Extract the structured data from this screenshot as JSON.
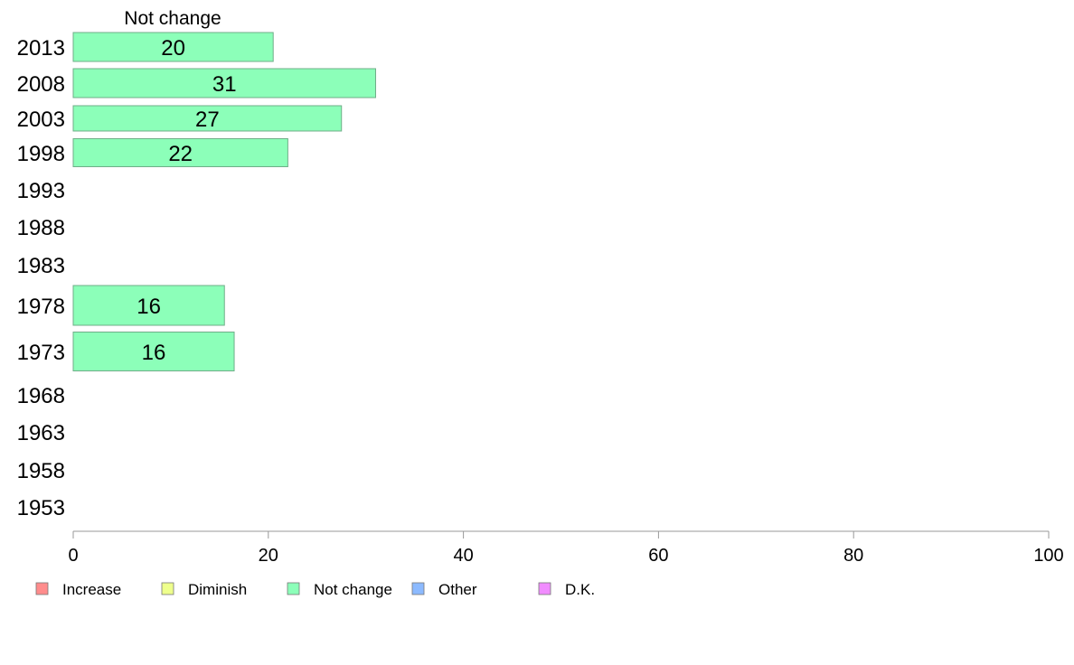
{
  "chart_data": {
    "type": "bar",
    "orientation": "horizontal",
    "header": "Not change",
    "categories": [
      "2013",
      "2008",
      "2003",
      "1998",
      "1993",
      "1988",
      "1983",
      "1978",
      "1973",
      "1968",
      "1963",
      "1958",
      "1953"
    ],
    "series": [
      {
        "name": "Not change",
        "values": [
          20.5,
          31,
          27.5,
          22,
          null,
          null,
          null,
          15.5,
          16.5,
          null,
          null,
          null,
          null
        ],
        "labels": [
          "20",
          "31",
          "27",
          "22",
          "",
          "",
          "",
          "16",
          "16",
          "",
          "",
          "",
          ""
        ]
      }
    ],
    "xlim": [
      0,
      100
    ],
    "xticks": [
      0,
      20,
      40,
      60,
      80,
      100
    ],
    "legend": {
      "position": "bottom",
      "items": [
        {
          "label": "Increase",
          "color": "#ff8c8c"
        },
        {
          "label": "Diminish",
          "color": "#eeff8c"
        },
        {
          "label": "Not change",
          "color": "#8cffb9"
        },
        {
          "label": "Other",
          "color": "#8cbaff"
        },
        {
          "label": "D.K.",
          "color": "#f18cff"
        }
      ]
    },
    "bar_color": "#8cffb9",
    "grid": false
  }
}
